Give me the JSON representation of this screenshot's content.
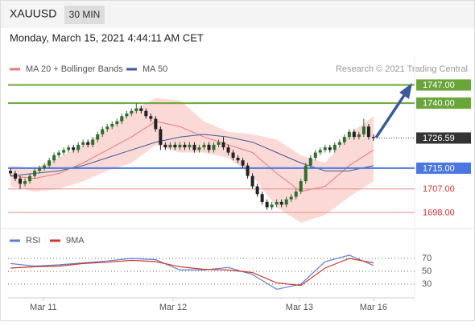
{
  "header": {
    "symbol": "XAUUSD",
    "interval": "30 MIN",
    "datetime": "Monday, March 15, 2021 4:44:11 AM CET"
  },
  "chart_data": [
    {
      "type": "candlestick",
      "note": "Research © 2021 Trading Central",
      "xlim": [
        -0.5,
        83.5
      ],
      "ylim": [
        1693,
        1758
      ],
      "candles": {
        "up_color": "#2f6e2f",
        "down_color": "#222222",
        "open": [
          1714,
          1713,
          1711,
          1709,
          1710,
          1712,
          1714,
          1715,
          1716,
          1718,
          1720,
          1721,
          1722,
          1723,
          1722,
          1724,
          1725,
          1724,
          1726,
          1728,
          1730,
          1731,
          1732,
          1733,
          1735,
          1736,
          1737,
          1738,
          1737,
          1735,
          1734,
          1730,
          1724,
          1723,
          1724,
          1723,
          1724,
          1723,
          1724,
          1722,
          1723,
          1724,
          1722,
          1724,
          1725,
          1723,
          1721,
          1719,
          1718,
          1716,
          1712,
          1708,
          1705,
          1702,
          1700,
          1701,
          1702,
          1701,
          1703,
          1704,
          1706,
          1710,
          1716,
          1719,
          1721,
          1722,
          1723,
          1722,
          1724,
          1725,
          1727,
          1729,
          1727,
          1728,
          1731,
          1727
        ],
        "high": [
          1715,
          1714,
          1712,
          1711,
          1713,
          1715,
          1716,
          1717,
          1719,
          1721,
          1722,
          1723,
          1724,
          1724,
          1725,
          1726,
          1726,
          1727,
          1729,
          1731,
          1732,
          1733,
          1734,
          1736,
          1737,
          1738,
          1740,
          1739,
          1738,
          1736,
          1735,
          1731,
          1725,
          1725,
          1725,
          1725,
          1725,
          1725,
          1725,
          1724,
          1725,
          1725,
          1725,
          1726,
          1727,
          1724,
          1722,
          1720,
          1719,
          1717,
          1713,
          1709,
          1706,
          1703,
          1702,
          1703,
          1703,
          1704,
          1705,
          1707,
          1711,
          1717,
          1720,
          1722,
          1723,
          1724,
          1724,
          1725,
          1726,
          1728,
          1730,
          1730,
          1729,
          1734,
          1732,
          1728
        ],
        "low": [
          1712,
          1710,
          1707,
          1708,
          1709,
          1711,
          1713,
          1714,
          1715,
          1717,
          1719,
          1720,
          1721,
          1721,
          1721,
          1723,
          1723,
          1723,
          1725,
          1727,
          1729,
          1730,
          1731,
          1732,
          1734,
          1735,
          1736,
          1736,
          1734,
          1733,
          1729,
          1722,
          1722,
          1722,
          1722,
          1722,
          1722,
          1722,
          1721,
          1721,
          1722,
          1721,
          1721,
          1723,
          1722,
          1720,
          1718,
          1717,
          1715,
          1711,
          1707,
          1704,
          1701,
          1699,
          1699,
          1700,
          1700,
          1700,
          1702,
          1703,
          1705,
          1709,
          1715,
          1718,
          1720,
          1721,
          1721,
          1721,
          1723,
          1724,
          1726,
          1726,
          1726,
          1727,
          1726,
          1725.5
        ],
        "close": [
          1713,
          1711,
          1709,
          1710,
          1712,
          1714,
          1715,
          1716,
          1718,
          1720,
          1721,
          1722,
          1723,
          1722,
          1724,
          1725,
          1724,
          1726,
          1728,
          1730,
          1731,
          1732,
          1733,
          1735,
          1736,
          1737,
          1738,
          1737,
          1735,
          1734,
          1730,
          1724,
          1723,
          1724,
          1723,
          1724,
          1723,
          1724,
          1722,
          1723,
          1724,
          1722,
          1724,
          1725,
          1723,
          1721,
          1719,
          1718,
          1716,
          1712,
          1708,
          1705,
          1702,
          1700,
          1701,
          1702,
          1701,
          1703,
          1704,
          1706,
          1710,
          1716,
          1719,
          1721,
          1722,
          1723,
          1722,
          1724,
          1725,
          1727,
          1729,
          1727,
          1728,
          1731,
          1727,
          1726.59
        ]
      },
      "series": [
        {
          "name": "MA 20 + Bollinger Bands",
          "color": "#e8797a",
          "band_color": "#fbd9d6",
          "x": [
            0,
            5,
            10,
            15,
            20,
            25,
            30,
            35,
            40,
            45,
            50,
            55,
            60,
            65,
            70,
            75
          ],
          "values": [
            1712,
            1711,
            1713,
            1717,
            1722,
            1727,
            1733,
            1731,
            1727,
            1724,
            1721,
            1713,
            1706,
            1708,
            1716,
            1722
          ],
          "upper": [
            1716,
            1715,
            1719,
            1724,
            1730,
            1737,
            1742,
            1741,
            1733,
            1729,
            1728,
            1726,
            1720,
            1717,
            1728,
            1735
          ],
          "lower": [
            1708,
            1706,
            1707,
            1710,
            1714,
            1717,
            1724,
            1721,
            1721,
            1719,
            1712,
            1700,
            1694,
            1697,
            1704,
            1710
          ]
        },
        {
          "name": "MA 50",
          "color": "#3d5a99",
          "x": [
            0,
            5,
            10,
            15,
            20,
            25,
            30,
            35,
            40,
            45,
            50,
            55,
            60,
            65,
            70,
            75
          ],
          "values": [
            1712,
            1713,
            1714,
            1716,
            1719,
            1722,
            1725,
            1727,
            1728,
            1727,
            1725,
            1721,
            1717,
            1714,
            1714,
            1716
          ]
        }
      ],
      "levels": [
        {
          "value": 1747,
          "label": "1747.00",
          "color": "#6aa53a",
          "style": "box"
        },
        {
          "value": 1740,
          "label": "1740.00",
          "color": "#6aa53a",
          "style": "box"
        },
        {
          "value": 1726.59,
          "label": "1726.59",
          "color": "#333333",
          "style": "current"
        },
        {
          "value": 1715,
          "label": "1715.00",
          "color": "#4a78e0",
          "style": "box"
        },
        {
          "value": 1707,
          "label": "1707.00",
          "color": "#e88a8a",
          "style": "text"
        },
        {
          "value": 1698,
          "label": "1698.00",
          "color": "#e88a8a",
          "style": "text"
        }
      ]
    },
    {
      "type": "line",
      "xlim": [
        -0.5,
        83.5
      ],
      "ylim": [
        10,
        85
      ],
      "yticks": [
        70,
        50,
        30
      ],
      "xticks": [
        {
          "value": 6.8,
          "label": "Mar 11"
        },
        {
          "value": 33.6,
          "label": "Mar 12"
        },
        {
          "value": 59.7,
          "label": "Mar 13"
        },
        {
          "value": 75,
          "label": "Mar 16"
        }
      ],
      "series": [
        {
          "name": "RSI",
          "color": "#5b7fd6",
          "x": [
            0,
            5,
            10,
            15,
            20,
            25,
            30,
            35,
            40,
            45,
            50,
            55,
            60,
            65,
            70,
            75
          ],
          "values": [
            62,
            58,
            60,
            63,
            66,
            70,
            68,
            52,
            52,
            56,
            45,
            22,
            30,
            65,
            75,
            59
          ]
        },
        {
          "name": "9MA",
          "color": "#d03a2a",
          "x": [
            0,
            5,
            10,
            15,
            20,
            25,
            30,
            35,
            40,
            45,
            50,
            55,
            60,
            65,
            70,
            75
          ],
          "values": [
            55,
            57,
            58,
            62,
            64,
            67,
            65,
            57,
            53,
            52,
            48,
            32,
            28,
            55,
            70,
            63
          ]
        }
      ]
    }
  ]
}
